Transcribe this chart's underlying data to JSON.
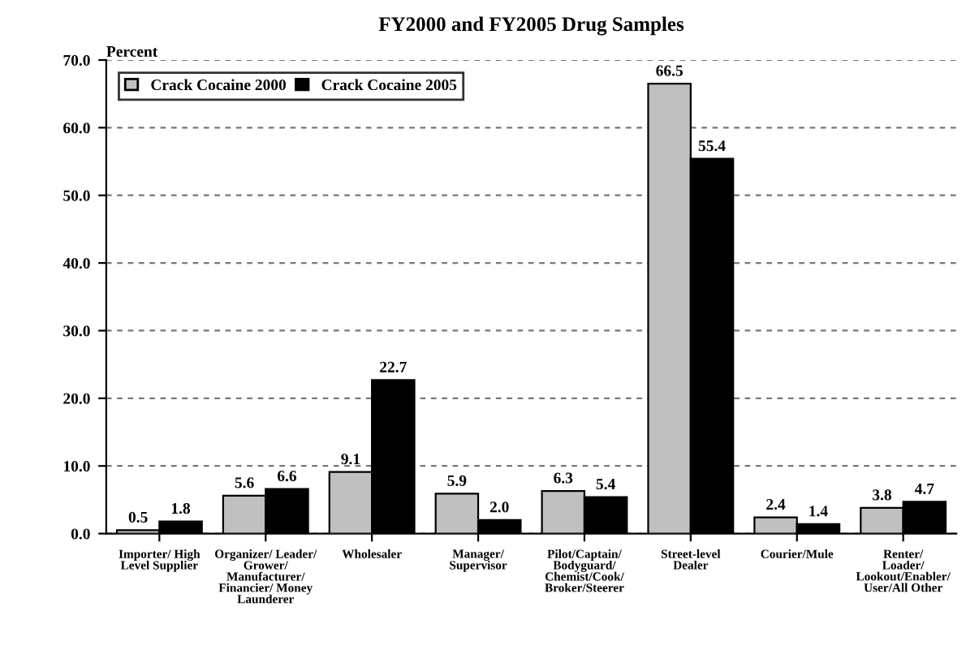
{
  "chart_data": {
    "type": "bar",
    "title": "FY2000 and FY2005 Drug Samples",
    "ylabel": "Percent",
    "categories": [
      "Importer/ High\nLevel Supplier",
      "Organizer/ Leader/\nGrower/\nManufacturer/\nFinancier/ Money\nLaunderer",
      "Wholesaler",
      "Manager/\nSupervisor",
      "Pilot/Captain/\nBodyguard/\nChemist/Cook/\nBroker/Steerer",
      "Street-level\nDealer",
      "Courier/Mule",
      "Renter/\nLoader/\nLookout/Enabler/\nUser/All Other"
    ],
    "series": [
      {
        "name": "Crack Cocaine 2000",
        "color": "#c0c0c0",
        "values": [
          0.5,
          5.6,
          9.1,
          5.9,
          6.3,
          66.5,
          2.4,
          3.8
        ],
        "value_labels": [
          "0.5",
          "5.6",
          "9.1",
          "5.9",
          "6.3",
          "66.5",
          "2.4",
          "3.8"
        ]
      },
      {
        "name": "Crack Cocaine 2005",
        "color": "#000000",
        "values": [
          1.8,
          6.6,
          22.7,
          2.0,
          5.4,
          55.4,
          1.4,
          4.7
        ],
        "value_labels": [
          "1.8",
          "6.6",
          "22.7",
          "2.0",
          "5.4",
          "55.4",
          "1.4",
          "4.7"
        ]
      }
    ],
    "ylim": [
      0,
      70
    ],
    "yticks": [
      {
        "value": 0,
        "label": "0.0"
      },
      {
        "value": 10,
        "label": "10.0"
      },
      {
        "value": 20,
        "label": "20.0"
      },
      {
        "value": 30,
        "label": "30.0"
      },
      {
        "value": 40,
        "label": "40.0"
      },
      {
        "value": 50,
        "label": "50.0"
      },
      {
        "value": 60,
        "label": "60.0"
      },
      {
        "value": 70,
        "label": "70.0"
      }
    ],
    "grid": "y",
    "legend": "top left"
  }
}
